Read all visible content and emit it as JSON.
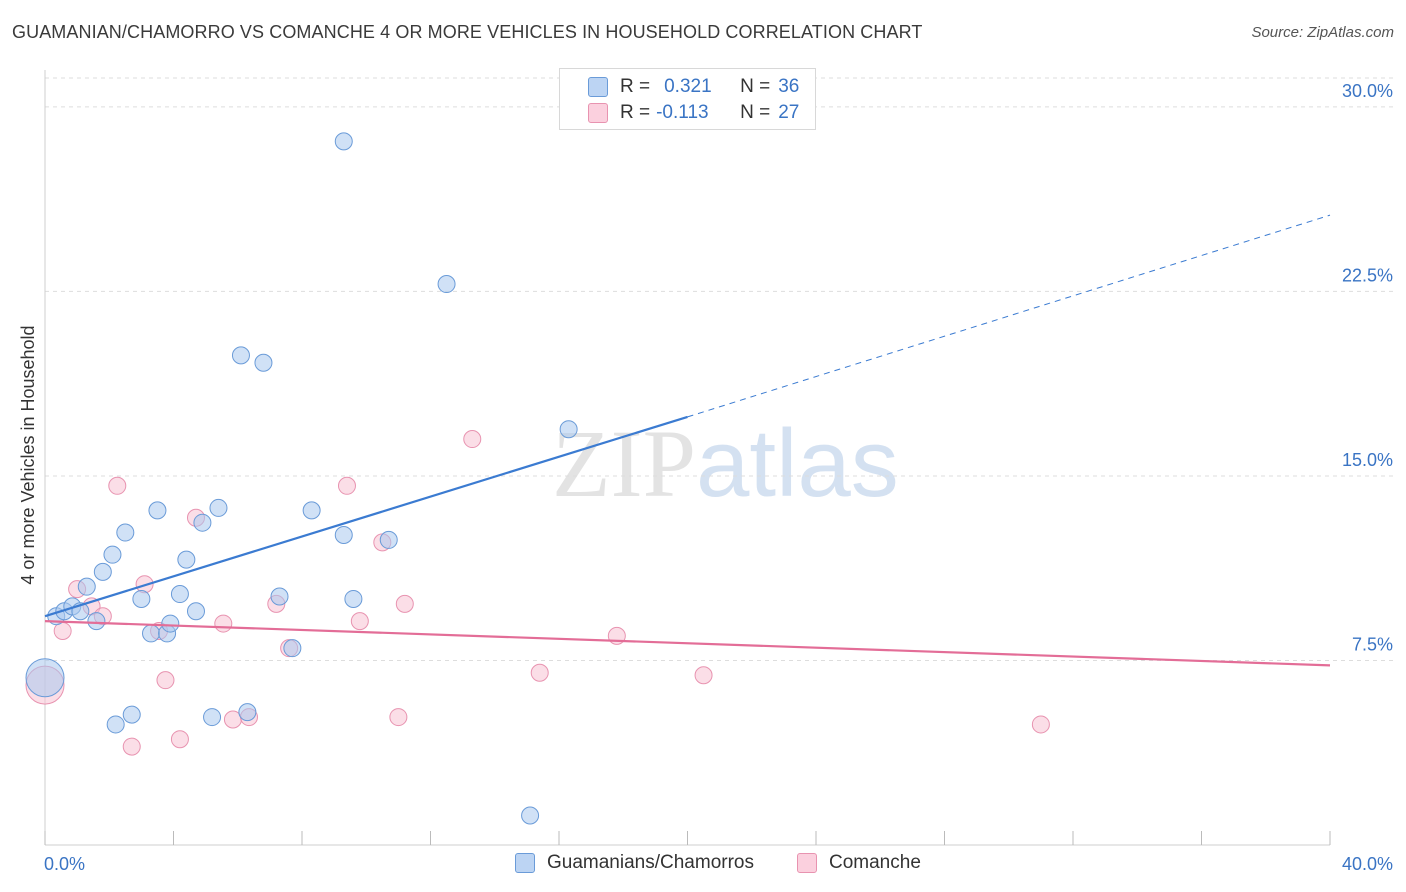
{
  "title": "GUAMANIAN/CHAMORRO VS COMANCHE 4 OR MORE VEHICLES IN HOUSEHOLD CORRELATION CHART",
  "source": "Source: ZipAtlas.com",
  "watermark": {
    "zip": "ZIP",
    "atlas": "atlas"
  },
  "stats": [
    {
      "r_label": "R =",
      "r_value": "0.321",
      "n_label": "N =",
      "n_value": "36"
    },
    {
      "r_label": "R =",
      "r_value": "-0.113",
      "n_label": "N =",
      "n_value": "27"
    }
  ],
  "colors": {
    "blue_fill": "#a9c8ef",
    "blue_stroke": "#6a9bd8",
    "blue_line": "#3b7bd1",
    "pink_fill": "#f7c2d3",
    "pink_stroke": "#e893b0",
    "pink_line": "#e36d97",
    "tick_label": "#3a74c4",
    "grid": "#dddddd"
  },
  "chart_data": {
    "type": "scatter",
    "title": "GUAMANIAN/CHAMORRO VS COMANCHE 4 OR MORE VEHICLES IN HOUSEHOLD CORRELATION CHART",
    "xlabel": "",
    "ylabel": "4 or more Vehicles in Household",
    "xlim": [
      0,
      40
    ],
    "ylim": [
      0,
      31.5
    ],
    "x_tick_labels": [
      "0.0%",
      "40.0%"
    ],
    "y_ticks": [
      7.5,
      15.0,
      22.5,
      30.0
    ],
    "y_tick_labels": [
      "7.5%",
      "15.0%",
      "22.5%",
      "30.0%"
    ],
    "grid": true,
    "legend_position": "bottom",
    "series": [
      {
        "name": "Guamanians/Chamorros",
        "color": "#a9c8ef",
        "points": [
          {
            "x": 0.0,
            "y": 6.8,
            "size": "large"
          },
          {
            "x": 0.35,
            "y": 9.3
          },
          {
            "x": 0.6,
            "y": 9.5
          },
          {
            "x": 0.85,
            "y": 9.7
          },
          {
            "x": 1.1,
            "y": 9.5
          },
          {
            "x": 1.3,
            "y": 10.5
          },
          {
            "x": 1.6,
            "y": 9.1
          },
          {
            "x": 1.8,
            "y": 11.1
          },
          {
            "x": 2.1,
            "y": 11.8
          },
          {
            "x": 2.5,
            "y": 12.7
          },
          {
            "x": 2.7,
            "y": 5.3
          },
          {
            "x": 2.2,
            "y": 4.9
          },
          {
            "x": 3.0,
            "y": 10.0
          },
          {
            "x": 3.3,
            "y": 8.6
          },
          {
            "x": 3.5,
            "y": 13.6
          },
          {
            "x": 3.8,
            "y": 8.6
          },
          {
            "x": 3.9,
            "y": 9.0
          },
          {
            "x": 4.2,
            "y": 10.2
          },
          {
            "x": 4.4,
            "y": 11.6
          },
          {
            "x": 4.7,
            "y": 9.5
          },
          {
            "x": 4.9,
            "y": 13.1
          },
          {
            "x": 5.2,
            "y": 5.2
          },
          {
            "x": 5.4,
            "y": 13.7
          },
          {
            "x": 6.1,
            "y": 19.9
          },
          {
            "x": 6.3,
            "y": 5.4
          },
          {
            "x": 6.8,
            "y": 19.6
          },
          {
            "x": 7.3,
            "y": 10.1
          },
          {
            "x": 7.7,
            "y": 8.0
          },
          {
            "x": 8.3,
            "y": 13.6
          },
          {
            "x": 9.3,
            "y": 28.6
          },
          {
            "x": 9.3,
            "y": 12.6
          },
          {
            "x": 9.6,
            "y": 10.0
          },
          {
            "x": 10.7,
            "y": 12.4
          },
          {
            "x": 12.5,
            "y": 22.8
          },
          {
            "x": 16.3,
            "y": 16.9
          },
          {
            "x": 15.1,
            "y": 1.2
          }
        ],
        "trend": {
          "x0": 0,
          "y0": 9.3,
          "x1": 20,
          "y1": 17.4,
          "dashed_to_x": 40,
          "dashed_to_y": 25.6
        }
      },
      {
        "name": "Comanche",
        "color": "#f7c2d3",
        "points": [
          {
            "x": 0.0,
            "y": 6.5,
            "size": "large"
          },
          {
            "x": 0.55,
            "y": 8.7
          },
          {
            "x": 1.0,
            "y": 10.4
          },
          {
            "x": 1.45,
            "y": 9.7
          },
          {
            "x": 1.8,
            "y": 9.3
          },
          {
            "x": 2.25,
            "y": 14.6
          },
          {
            "x": 2.7,
            "y": 4.0
          },
          {
            "x": 3.1,
            "y": 10.6
          },
          {
            "x": 3.55,
            "y": 8.7
          },
          {
            "x": 3.75,
            "y": 6.7
          },
          {
            "x": 4.2,
            "y": 4.3
          },
          {
            "x": 4.7,
            "y": 13.3
          },
          {
            "x": 5.55,
            "y": 9.0
          },
          {
            "x": 5.85,
            "y": 5.1
          },
          {
            "x": 6.35,
            "y": 5.2
          },
          {
            "x": 7.2,
            "y": 9.8
          },
          {
            "x": 7.6,
            "y": 8.0
          },
          {
            "x": 9.4,
            "y": 14.6
          },
          {
            "x": 9.8,
            "y": 9.1
          },
          {
            "x": 10.5,
            "y": 12.3
          },
          {
            "x": 11.0,
            "y": 5.2
          },
          {
            "x": 11.2,
            "y": 9.8
          },
          {
            "x": 13.3,
            "y": 16.5
          },
          {
            "x": 15.4,
            "y": 7.0
          },
          {
            "x": 17.8,
            "y": 8.5
          },
          {
            "x": 20.5,
            "y": 6.9
          },
          {
            "x": 31.0,
            "y": 4.9
          }
        ],
        "trend": {
          "x0": 0,
          "y0": 9.1,
          "x1": 40,
          "y1": 7.3
        }
      }
    ]
  }
}
